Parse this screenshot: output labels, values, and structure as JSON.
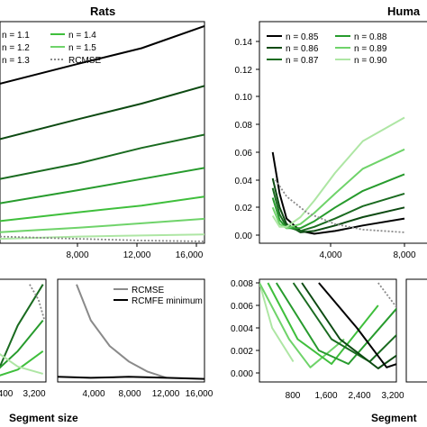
{
  "colors": {
    "black": "#000000",
    "g1": "#0d4a12",
    "g2": "#1a6b20",
    "g3": "#279b2d",
    "g4": "#3fbf3c",
    "g5": "#6fd36a",
    "g6": "#aee6a4",
    "rcmse": "#8a8a8a"
  },
  "chart_data": [
    {
      "id": "rats-main",
      "type": "line",
      "title": "Rats",
      "x_ticks": [
        "8,000",
        "12,000",
        "16,000"
      ],
      "legend": {
        "placement": "top-left",
        "entries": [
          "n = 1.1",
          "n = 1.4",
          "n = 1.2",
          "n = 1.5",
          "n = 1.3",
          "RCMSE"
        ]
      },
      "x_range": [
        3000,
        16000
      ],
      "y_range": [
        0,
        1
      ],
      "series": [
        {
          "name": "n = 1.1",
          "color": "black",
          "x": [
            3000,
            8000,
            12000,
            16000
          ],
          "y": [
            0.72,
            0.81,
            0.88,
            0.98
          ]
        },
        {
          "name": "n = 1.2",
          "color": "g1",
          "x": [
            3000,
            8000,
            12000,
            16000
          ],
          "y": [
            0.47,
            0.56,
            0.63,
            0.71
          ]
        },
        {
          "color": "g2",
          "x": [
            3000,
            8000,
            12000,
            16000
          ],
          "y": [
            0.29,
            0.36,
            0.43,
            0.49
          ]
        },
        {
          "name": "n = 1.3",
          "color": "g3",
          "x": [
            3000,
            8000,
            12000,
            16000
          ],
          "y": [
            0.18,
            0.24,
            0.29,
            0.34
          ]
        },
        {
          "name": "n = 1.4",
          "color": "g4",
          "x": [
            3000,
            8000,
            12000,
            16000
          ],
          "y": [
            0.1,
            0.14,
            0.17,
            0.21
          ]
        },
        {
          "name": "n = 1.5",
          "color": "g5",
          "x": [
            3000,
            8000,
            12000,
            16000
          ],
          "y": [
            0.05,
            0.07,
            0.09,
            0.11
          ]
        },
        {
          "color": "g6",
          "x": [
            3000,
            8000,
            12000,
            16000
          ],
          "y": [
            0.02,
            0.03,
            0.035,
            0.04
          ]
        },
        {
          "name": "RCMSE",
          "color": "rcmse",
          "dashed": true,
          "x": [
            3000,
            8000,
            12000,
            16000
          ],
          "y": [
            0.03,
            0.02,
            0.012,
            0.008
          ]
        }
      ]
    },
    {
      "id": "human-main",
      "type": "line",
      "title": "Huma",
      "y_ticks": [
        "0.00",
        "0.02",
        "0.04",
        "0.06",
        "0.08",
        "0.10",
        "0.12",
        "0.14"
      ],
      "x_ticks": [
        "4,000",
        "8,000"
      ],
      "legend": {
        "placement": "top-left",
        "entries": [
          "n = 0.85",
          "n = 0.88",
          "n = 0.86",
          "n = 0.89",
          "n = 0.87",
          "n = 0.90"
        ]
      },
      "x_range": [
        0,
        10000
      ],
      "y_range": [
        0,
        0.14
      ],
      "series": [
        {
          "name": "n = 0.85",
          "color": "black",
          "x": [
            500,
            1000,
            1500,
            2500,
            3500,
            5000,
            7000,
            10000
          ],
          "y": [
            0.06,
            0.03,
            0.012,
            0.003,
            0.001,
            0.003,
            0.007,
            0.012
          ]
        },
        {
          "name": "n = 0.86",
          "color": "g1",
          "x": [
            500,
            1000,
            1500,
            2500,
            3500,
            5000,
            7000,
            10000
          ],
          "y": [
            0.041,
            0.02,
            0.008,
            0.002,
            0.003,
            0.007,
            0.013,
            0.02
          ]
        },
        {
          "name": "n = 0.87",
          "color": "g2",
          "x": [
            500,
            1000,
            1500,
            2500,
            3500,
            5000,
            7000,
            10000
          ],
          "y": [
            0.034,
            0.015,
            0.006,
            0.003,
            0.006,
            0.012,
            0.021,
            0.03
          ]
        },
        {
          "name": "n = 0.88",
          "color": "g3",
          "x": [
            500,
            1000,
            1500,
            2500,
            3500,
            5000,
            7000,
            10000
          ],
          "y": [
            0.027,
            0.011,
            0.005,
            0.005,
            0.01,
            0.02,
            0.032,
            0.044
          ]
        },
        {
          "name": "n = 0.89",
          "color": "g5",
          "x": [
            500,
            1000,
            1500,
            2500,
            3500,
            5000,
            7000,
            10000
          ],
          "y": [
            0.02,
            0.008,
            0.005,
            0.008,
            0.016,
            0.03,
            0.048,
            0.062
          ]
        },
        {
          "name": "n = 0.90",
          "color": "g6",
          "x": [
            500,
            1000,
            1500,
            2500,
            3500,
            5000,
            7000,
            10000
          ],
          "y": [
            0.014,
            0.006,
            0.006,
            0.013,
            0.025,
            0.045,
            0.068,
            0.085
          ]
        },
        {
          "color": "rcmse",
          "dashed": true,
          "x": [
            700,
            1500,
            3000,
            5000,
            7000,
            10000
          ],
          "y": [
            0.04,
            0.028,
            0.016,
            0.008,
            0.004,
            0.002
          ]
        }
      ]
    },
    {
      "id": "rats-inset-1",
      "type": "line",
      "x_ticks": [
        "400",
        "3,200"
      ],
      "x_range": [
        0,
        3400
      ],
      "y_range": [
        0,
        1
      ],
      "series": [
        {
          "color": "g2",
          "x": [
            0,
            1500,
            3200
          ],
          "y": [
            0.05,
            0.55,
            0.95
          ]
        },
        {
          "color": "g3",
          "x": [
            0,
            1500,
            3200
          ],
          "y": [
            0.1,
            0.3,
            0.6
          ]
        },
        {
          "color": "g4",
          "x": [
            0,
            1500,
            3200
          ],
          "y": [
            0.05,
            0.12,
            0.3
          ]
        },
        {
          "color": "g6",
          "x": [
            0,
            1500,
            3200
          ],
          "y": [
            0.3,
            0.15,
            0.08
          ]
        },
        {
          "color": "rcmse",
          "dashed": true,
          "x": [
            2300,
            2900,
            3300
          ],
          "y": [
            0.95,
            0.8,
            0.6
          ]
        }
      ]
    },
    {
      "id": "rats-inset-2",
      "type": "line",
      "x_ticks": [
        "4,000",
        "8,000",
        "12,000",
        "16,000"
      ],
      "legend": {
        "placement": "top-right",
        "entries": [
          "RCMSE",
          "RCMFE minimum"
        ]
      },
      "x_range": [
        500,
        16000
      ],
      "y_range": [
        0,
        1
      ],
      "series": [
        {
          "name": "RCMSE",
          "color": "rcmse",
          "x": [
            2500,
            4000,
            6000,
            8000,
            10000,
            12000
          ],
          "y": [
            0.95,
            0.6,
            0.35,
            0.2,
            0.1,
            0.04
          ]
        },
        {
          "name": "RCMFE minimum",
          "color": "black",
          "x": [
            500,
            4000,
            8000,
            12000,
            16000
          ],
          "y": [
            0.05,
            0.04,
            0.05,
            0.04,
            0.03
          ]
        }
      ]
    },
    {
      "id": "human-inset",
      "type": "line",
      "y_ticks": [
        "0.000",
        "0.002",
        "0.004",
        "0.006",
        "0.008"
      ],
      "x_ticks": [
        "800",
        "1,600",
        "2,400",
        "3,200"
      ],
      "x_range": [
        0,
        3400
      ],
      "y_range": [
        0,
        0.008
      ],
      "series": [
        {
          "color": "g6",
          "x": [
            0,
            300,
            800
          ],
          "y": [
            0.008,
            0.004,
            0.001
          ]
        },
        {
          "color": "g5",
          "x": [
            0,
            700,
            1200,
            2000
          ],
          "y": [
            0.008,
            0.003,
            0.0005,
            0.003
          ]
        },
        {
          "color": "g4",
          "x": [
            200,
            900,
            1700,
            2800
          ],
          "y": [
            0.008,
            0.003,
            0.0008,
            0.006
          ]
        },
        {
          "color": "g3",
          "x": [
            400,
            1400,
            2100,
            3300
          ],
          "y": [
            0.008,
            0.002,
            0.0008,
            0.006
          ]
        },
        {
          "color": "g2",
          "x": [
            800,
            1700,
            2600,
            3400
          ],
          "y": [
            0.008,
            0.003,
            0.001,
            0.004
          ]
        },
        {
          "color": "g1",
          "x": [
            1000,
            1900,
            2800,
            3400
          ],
          "y": [
            0.008,
            0.003,
            0.0004,
            0.002
          ]
        },
        {
          "color": "black",
          "x": [
            1400,
            2300,
            3000,
            3400
          ],
          "y": [
            0.008,
            0.004,
            0.0005,
            0.001
          ]
        },
        {
          "color": "rcmse",
          "dashed": true,
          "x": [
            2800,
            3400
          ],
          "y": [
            0.008,
            0.005
          ]
        }
      ]
    }
  ],
  "axis_labels": {
    "left": "Segment size",
    "right": "Segment"
  }
}
